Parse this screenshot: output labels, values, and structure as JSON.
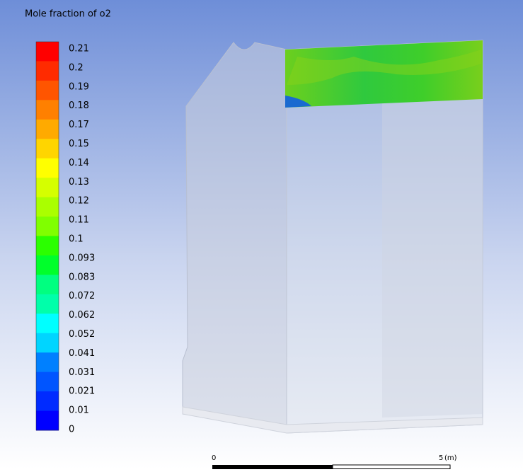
{
  "legend": {
    "title": "Mole fraction of o2",
    "labels": [
      "0.21",
      "0.2",
      "0.19",
      "0.18",
      "0.17",
      "0.15",
      "0.14",
      "0.13",
      "0.12",
      "0.11",
      "0.1",
      "0.093",
      "0.083",
      "0.072",
      "0.062",
      "0.052",
      "0.041",
      "0.031",
      "0.021",
      "0.01",
      "0"
    ],
    "colors": [
      "#ff0000",
      "#ff2b00",
      "#ff5500",
      "#ff8000",
      "#ffaa00",
      "#ffd500",
      "#ffff00",
      "#d5ff00",
      "#aaff00",
      "#80ff00",
      "#2bff00",
      "#00ff2b",
      "#00ff80",
      "#00ffaa",
      "#00ffff",
      "#00d5ff",
      "#0080ff",
      "#0055ff",
      "#002bff",
      "#0000ff"
    ]
  },
  "scale": {
    "start": "0",
    "end": "5",
    "unit": "(m)"
  }
}
